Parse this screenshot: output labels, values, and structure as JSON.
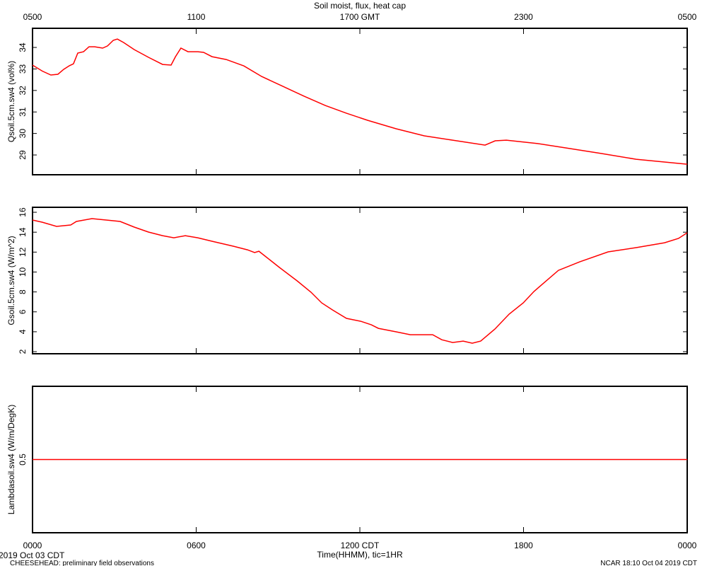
{
  "chart_data": [
    {
      "type": "line",
      "title": "Soil moist, flux, heat cap",
      "ylabel": "Qsoil.5cm.sw4 (vol%)",
      "xlim": [
        0,
        24
      ],
      "ylim": [
        28.08,
        34.89
      ],
      "yticks": [
        29,
        30,
        31,
        32,
        33,
        34
      ],
      "x2ticks": [
        {
          "value": 0,
          "label": "0500"
        },
        {
          "value": 6,
          "label": "1100"
        },
        {
          "value": 12,
          "label": "1700 GMT"
        },
        {
          "value": 18,
          "label": "2300"
        },
        {
          "value": 24,
          "label": "0500"
        }
      ],
      "x": [
        0,
        0.36,
        0.67,
        0.93,
        1.14,
        1.35,
        1.5,
        1.66,
        1.87,
        2.07,
        2.28,
        2.57,
        2.75,
        2.96,
        3.11,
        3.34,
        3.73,
        4.25,
        4.77,
        5.08,
        5.24,
        5.44,
        5.7,
        6.06,
        6.27,
        6.58,
        7.1,
        7.75,
        8.4,
        9.18,
        9.96,
        10.73,
        11.51,
        12.29,
        13.33,
        14.36,
        15.4,
        16.59,
        16.96,
        17.37,
        18.51,
        19.54,
        20.84,
        22.13,
        24
      ],
      "series": [
        {
          "name": "Qsoil.5cm.sw4",
          "color": "#ff0000",
          "values": [
            33.18,
            32.9,
            32.72,
            32.75,
            32.98,
            33.15,
            33.24,
            33.74,
            33.8,
            34.03,
            34.03,
            33.97,
            34.07,
            34.33,
            34.39,
            34.23,
            33.9,
            33.54,
            33.21,
            33.18,
            33.57,
            33.97,
            33.8,
            33.8,
            33.77,
            33.57,
            33.44,
            33.14,
            32.65,
            32.19,
            31.73,
            31.3,
            30.94,
            30.61,
            30.22,
            29.89,
            29.69,
            29.46,
            29.66,
            29.69,
            29.53,
            29.33,
            29.07,
            28.8,
            28.57
          ]
        }
      ]
    },
    {
      "type": "line",
      "ylabel": "Gsoil.5cm.sw4 (W/m^2)",
      "xlim": [
        0,
        24
      ],
      "ylim": [
        1.79,
        16.5
      ],
      "yticks": [
        2,
        4,
        6,
        8,
        10,
        12,
        14,
        16
      ],
      "x": [
        0,
        0.36,
        0.88,
        1.4,
        1.61,
        2.18,
        2.7,
        3.21,
        3.73,
        4.25,
        4.77,
        5.18,
        5.6,
        6.06,
        6.58,
        7.36,
        7.88,
        8.14,
        8.3,
        8.53,
        9.05,
        9.7,
        10.21,
        10.6,
        11.0,
        11.51,
        12.03,
        12.42,
        12.68,
        13.33,
        13.85,
        14.67,
        15.0,
        15.4,
        15.79,
        16.12,
        16.43,
        16.95,
        17.47,
        17.99,
        18.38,
        19.28,
        20.06,
        21.1,
        22.13,
        23.17,
        23.68,
        24
      ],
      "series": [
        {
          "name": "Gsoil.5cm.sw4",
          "color": "#ff0000",
          "values": [
            15.22,
            15.0,
            14.58,
            14.72,
            15.08,
            15.36,
            15.22,
            15.08,
            14.51,
            14.01,
            13.65,
            13.44,
            13.65,
            13.44,
            13.09,
            12.59,
            12.23,
            11.95,
            12.09,
            11.59,
            10.46,
            9.11,
            7.97,
            6.9,
            6.19,
            5.34,
            5.05,
            4.7,
            4.34,
            3.99,
            3.7,
            3.7,
            3.2,
            2.92,
            3.06,
            2.85,
            3.06,
            4.27,
            5.77,
            6.9,
            8.04,
            10.17,
            11.02,
            12.02,
            12.45,
            12.94,
            13.37,
            13.94
          ]
        }
      ]
    },
    {
      "type": "line",
      "ylabel": "Lambdasoil.sw4 (W/m/DegK)",
      "xlabel": "Time(HHMM), tic=1HR",
      "xlim": [
        0,
        24
      ],
      "ylim": [
        0,
        1
      ],
      "yticks": [
        0.5
      ],
      "xticks": [
        {
          "value": 0,
          "label": "0000"
        },
        {
          "value": 6,
          "label": "0600"
        },
        {
          "value": 12,
          "label": "1200 CDT"
        },
        {
          "value": 18,
          "label": "1800"
        },
        {
          "value": 24,
          "label": "0000"
        }
      ],
      "x": [
        0,
        24
      ],
      "series": [
        {
          "name": "Lambdasoil.sw4",
          "color": "#ff0000",
          "values": [
            0.5,
            0.5
          ]
        }
      ]
    }
  ],
  "footer": {
    "date": "2019 Oct 03 CDT",
    "project": "CHEESEHEAD: preliminary field observations",
    "stamp": "NCAR 18:10 Oct 04 2019 CDT"
  }
}
